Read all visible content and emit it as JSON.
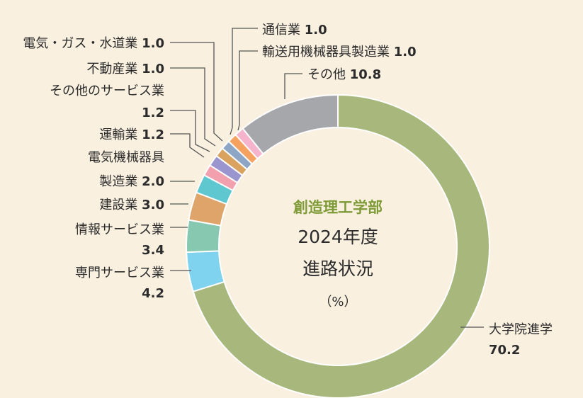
{
  "chart_data": {
    "type": "pie",
    "style": "donut",
    "title": "創造理工学部",
    "subtitle_lines": [
      "2024年度",
      "進路状況"
    ],
    "unit": "（%）",
    "slices": [
      {
        "label": "大学院進学",
        "value": 70.2,
        "value_text": "70.2",
        "color": "#a8b87c"
      },
      {
        "label": "専門サービス業",
        "value": 4.2,
        "value_text": "4.2",
        "color": "#7fd3ef"
      },
      {
        "label": "情報サービス業",
        "value": 3.4,
        "value_text": "3.4",
        "color": "#86c8b0"
      },
      {
        "label": "建設業",
        "value": 3.0,
        "value_text": "3.0",
        "color": "#dfa46a"
      },
      {
        "label": "電気機械器具製造業",
        "value": 2.0,
        "value_text": "2.0",
        "color": "#5ec7cf"
      },
      {
        "label": "運輸業",
        "value": 1.2,
        "value_text": "1.2",
        "color": "#f3a0ae"
      },
      {
        "label": "その他のサービス業",
        "value": 1.2,
        "value_text": "1.2",
        "color": "#9b95cf"
      },
      {
        "label": "不動産業",
        "value": 1.0,
        "value_text": "1.0",
        "color": "#d9a25e"
      },
      {
        "label": "電気・ガス・水道業",
        "value": 1.0,
        "value_text": "1.0",
        "color": "#8ea6c6"
      },
      {
        "label": "通信業",
        "value": 1.0,
        "value_text": "1.0",
        "color": "#f5a15f"
      },
      {
        "label": "輸送用機械器具製造業",
        "value": 1.0,
        "value_text": "1.0",
        "color": "#f6b4cc"
      },
      {
        "label": "その他",
        "value": 10.8,
        "value_text": "10.8",
        "color": "#a6a7ab"
      }
    ]
  }
}
